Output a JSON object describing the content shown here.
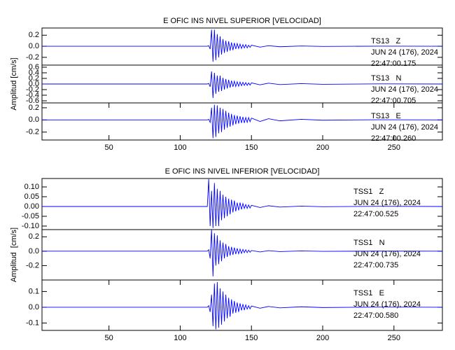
{
  "chart_data": [
    {
      "type": "line",
      "title": "E OFIC INS NIVEL SUPERIOR [VELOCIDAD]",
      "annotations": [
        "JUN 24 (176), 2024",
        "22:47:00.175"
      ],
      "xlim": [
        3,
        284
      ],
      "ylim": [
        -0.34,
        0.33
      ],
      "yticks": [
        0.2,
        {
          "value": 0,
          "label": "0.0"
        },
        -0.2
      ],
      "x": [
        3,
        50,
        100,
        118,
        119,
        120,
        121,
        122,
        123,
        124,
        125,
        126,
        127,
        128,
        129,
        130,
        131,
        132,
        133,
        134,
        135,
        136,
        137,
        138,
        139,
        140,
        141,
        142,
        143,
        144,
        145,
        146,
        147,
        148,
        149,
        150,
        156,
        162,
        170,
        185,
        200,
        240,
        284
      ],
      "series": [
        {
          "name": "TS13   Z",
          "color": "#0000ff",
          "values": [
            0,
            0,
            0,
            0,
            0,
            0.01,
            -0.05,
            0.3,
            -0.28,
            0.3,
            -0.25,
            0.22,
            -0.2,
            0.18,
            -0.15,
            0.13,
            -0.12,
            0.1,
            -0.1,
            0.09,
            -0.08,
            0.07,
            -0.07,
            0.06,
            -0.05,
            0.05,
            -0.04,
            0.04,
            -0.04,
            0.03,
            -0.03,
            0.03,
            -0.03,
            0.02,
            -0.02,
            0.02,
            -0.015,
            0.01,
            -0.008,
            0.005,
            -0.003,
            0.002,
            0
          ]
        }
      ]
    },
    {
      "type": "line",
      "ylabel": "Amplitud [cm/s]",
      "annotations": [
        "JUN 24 (176), 2024",
        "22:47:00.705"
      ],
      "xlim": [
        3,
        284
      ],
      "ylim": [
        -0.675,
        0.675
      ],
      "yticks": [
        0.6,
        0.4,
        0.2,
        {
          "value": 0,
          "label": "0.0"
        },
        -0.2,
        -0.4,
        -0.6
      ],
      "x": [
        3,
        50,
        100,
        118,
        119,
        120,
        121,
        122,
        123,
        124,
        125,
        126,
        127,
        128,
        129,
        130,
        131,
        132,
        133,
        134,
        135,
        136,
        137,
        138,
        139,
        140,
        141,
        142,
        143,
        144,
        145,
        146,
        147,
        148,
        149,
        150,
        156,
        162,
        170,
        185,
        200,
        240,
        284
      ],
      "series": [
        {
          "name": "TS13   N",
          "color": "#0000ff",
          "values": [
            0,
            0,
            0,
            0,
            0,
            0.02,
            -0.1,
            0.45,
            -0.5,
            0.4,
            -0.35,
            0.3,
            -0.28,
            0.3,
            -0.25,
            0.22,
            -0.2,
            0.18,
            -0.16,
            0.15,
            -0.13,
            0.12,
            -0.1,
            0.1,
            -0.09,
            0.08,
            -0.08,
            0.07,
            -0.06,
            0.06,
            -0.05,
            0.05,
            -0.05,
            0.04,
            -0.04,
            0.04,
            -0.03,
            0.03,
            -0.02,
            0.015,
            -0.01,
            0.005,
            0
          ]
        }
      ]
    },
    {
      "type": "line",
      "annotations": [
        "JUN 24 (176), 2024",
        "22:47:00.260"
      ],
      "xlim": [
        3,
        284
      ],
      "ylim": [
        -0.33,
        0.28
      ],
      "yticks": [
        0.2,
        {
          "value": 0,
          "label": "0.0"
        },
        -0.2
      ],
      "xticks": [
        50,
        100,
        150,
        200,
        250
      ],
      "x": [
        3,
        50,
        100,
        118,
        119,
        120,
        121,
        122,
        123,
        124,
        125,
        126,
        127,
        128,
        129,
        130,
        131,
        132,
        133,
        134,
        135,
        136,
        137,
        138,
        139,
        140,
        141,
        142,
        143,
        144,
        145,
        146,
        147,
        148,
        149,
        150,
        156,
        162,
        170,
        185,
        200,
        240,
        284
      ],
      "series": [
        {
          "name": "TS13   E",
          "color": "#0000ff",
          "values": [
            0,
            0,
            0,
            0,
            0,
            0.01,
            -0.04,
            0.2,
            -0.3,
            0.25,
            -0.28,
            0.24,
            -0.22,
            0.2,
            -0.2,
            0.18,
            -0.16,
            0.15,
            -0.13,
            0.12,
            -0.11,
            0.1,
            -0.09,
            0.08,
            -0.07,
            0.07,
            -0.06,
            0.06,
            -0.05,
            0.05,
            -0.05,
            0.04,
            -0.04,
            0.04,
            -0.03,
            0.03,
            -0.025,
            0.02,
            -0.015,
            0.01,
            -0.005,
            0.003,
            0
          ]
        }
      ]
    },
    {
      "type": "line",
      "title": "E OFIC INS NIVEL INFERIOR [VELOCIDAD]",
      "annotations": [
        "JUN 24 (176), 2024",
        "22:47:00.525"
      ],
      "xlim": [
        3,
        284
      ],
      "ylim": [
        -0.118,
        0.143
      ],
      "yticks": [
        {
          "value": 0.1,
          "label": "0.10"
        },
        0.05,
        {
          "value": 0,
          "label": "0.00"
        },
        -0.05,
        {
          "value": -0.1,
          "label": "-0.10"
        }
      ],
      "x": [
        3,
        50,
        100,
        118,
        119,
        120,
        121,
        122,
        123,
        124,
        125,
        126,
        127,
        128,
        129,
        130,
        131,
        132,
        133,
        134,
        135,
        136,
        137,
        138,
        139,
        140,
        141,
        142,
        143,
        144,
        145,
        146,
        147,
        148,
        149,
        150,
        156,
        162,
        170,
        185,
        200,
        240,
        284
      ],
      "series": [
        {
          "name": "TSS1   Z",
          "color": "#0000ff",
          "values": [
            0,
            0,
            0,
            0,
            0,
            0.14,
            -0.1,
            0.08,
            -0.11,
            0.12,
            -0.1,
            0.09,
            -0.1,
            0.08,
            -0.07,
            0.06,
            -0.06,
            0.05,
            -0.05,
            0.04,
            -0.04,
            0.035,
            -0.03,
            0.03,
            -0.025,
            0.02,
            -0.02,
            0.02,
            -0.015,
            0.015,
            -0.01,
            0.01,
            -0.01,
            0.008,
            -0.008,
            0.006,
            -0.005,
            0.004,
            -0.003,
            0.002,
            -0.001,
            0.001,
            0
          ]
        }
      ]
    },
    {
      "type": "line",
      "ylabel": "Amplitud  [cm/s]",
      "annotations": [
        "JUN 24 (176), 2024",
        "22:47:00.735"
      ],
      "xlim": [
        3,
        284
      ],
      "ylim": [
        -0.4,
        0.3
      ],
      "yticks": [
        0.2,
        {
          "value": 0,
          "label": "0.0"
        },
        -0.2
      ],
      "x": [
        3,
        50,
        100,
        118,
        119,
        120,
        121,
        122,
        123,
        124,
        125,
        126,
        127,
        128,
        129,
        130,
        131,
        132,
        133,
        134,
        135,
        136,
        137,
        138,
        139,
        140,
        141,
        142,
        143,
        144,
        145,
        146,
        147,
        148,
        149,
        150,
        156,
        162,
        170,
        185,
        200,
        240,
        284
      ],
      "series": [
        {
          "name": "TSS1   N",
          "color": "#0000ff",
          "values": [
            0,
            0,
            0,
            0,
            0,
            0.02,
            -0.1,
            0.3,
            -0.35,
            0.25,
            -0.2,
            0.22,
            -0.18,
            0.15,
            -0.14,
            0.12,
            -0.1,
            0.1,
            -0.08,
            0.07,
            -0.06,
            0.06,
            -0.05,
            0.05,
            -0.04,
            0.04,
            -0.035,
            0.03,
            -0.03,
            0.025,
            -0.02,
            0.02,
            -0.02,
            0.015,
            -0.015,
            0.01,
            -0.01,
            0.008,
            -0.006,
            0.004,
            -0.002,
            0.001,
            0
          ]
        }
      ]
    },
    {
      "type": "line",
      "annotations": [
        "JUN 24 (176), 2024",
        "22:47:00.580"
      ],
      "xlim": [
        3,
        284
      ],
      "ylim": [
        -0.147,
        0.173
      ],
      "yticks": [
        0.1,
        {
          "value": 0,
          "label": "0.0"
        },
        -0.1
      ],
      "xticks": [
        50,
        100,
        150,
        200,
        250
      ],
      "x": [
        3,
        50,
        100,
        118,
        119,
        120,
        121,
        122,
        123,
        124,
        125,
        126,
        127,
        128,
        129,
        130,
        131,
        132,
        133,
        134,
        135,
        136,
        137,
        138,
        139,
        140,
        141,
        142,
        143,
        144,
        145,
        146,
        147,
        148,
        149,
        150,
        156,
        162,
        170,
        185,
        200,
        240,
        284
      ],
      "series": [
        {
          "name": "TSS1   E",
          "color": "#0000ff",
          "values": [
            0,
            0,
            0,
            0,
            0,
            0.01,
            -0.03,
            0.08,
            -0.12,
            0.15,
            -0.14,
            0.16,
            -0.13,
            0.12,
            -0.11,
            0.1,
            -0.09,
            0.08,
            -0.07,
            0.06,
            -0.06,
            0.05,
            -0.04,
            0.04,
            -0.035,
            0.03,
            -0.03,
            0.025,
            -0.02,
            0.02,
            -0.018,
            0.015,
            -0.012,
            0.01,
            -0.01,
            0.008,
            -0.006,
            0.005,
            -0.004,
            0.003,
            -0.002,
            0.001,
            0
          ]
        }
      ]
    }
  ]
}
